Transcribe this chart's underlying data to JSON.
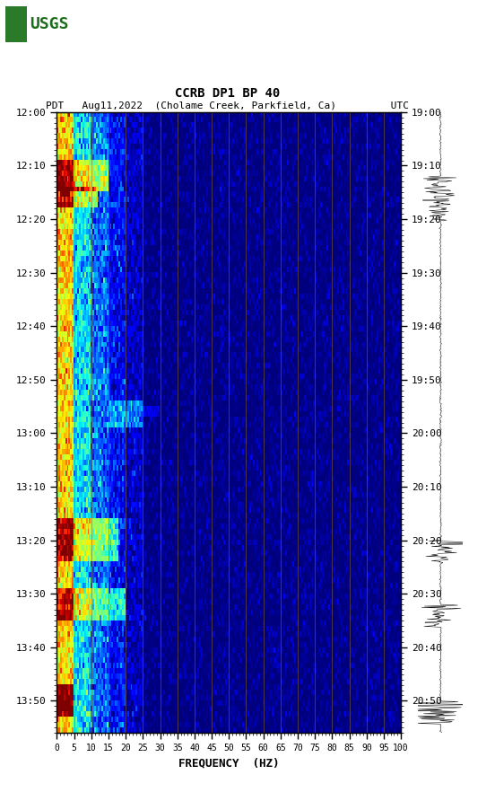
{
  "title_line1": "CCRB DP1 BP 40",
  "title_line2": "PDT   Aug11,2022  (Cholame Creek, Parkfield, Ca)         UTC",
  "xlabel": "FREQUENCY  (HZ)",
  "freq_ticks": [
    0,
    5,
    10,
    15,
    20,
    25,
    30,
    35,
    40,
    45,
    50,
    55,
    60,
    65,
    70,
    75,
    80,
    85,
    90,
    95,
    100
  ],
  "time_labels_left": [
    "12:00",
    "12:10",
    "12:20",
    "12:30",
    "12:40",
    "12:50",
    "13:00",
    "13:10",
    "13:20",
    "13:30",
    "13:40",
    "13:50"
  ],
  "time_labels_right": [
    "19:00",
    "19:10",
    "19:20",
    "19:30",
    "19:40",
    "19:50",
    "20:00",
    "20:10",
    "20:20",
    "20:30",
    "20:40",
    "20:50"
  ],
  "grid_color": "#8B6914",
  "n_time_bins": 116,
  "n_freq_bins": 200,
  "noise_floor": -160,
  "signal_max": -80
}
